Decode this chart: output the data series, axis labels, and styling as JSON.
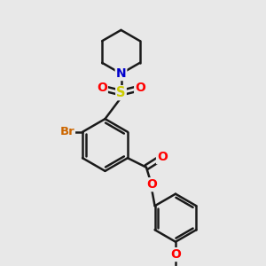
{
  "background_color": "#e8e8e8",
  "atom_colors": {
    "C": "#000000",
    "N": "#0000cd",
    "O": "#ff0000",
    "S": "#cccc00",
    "Br": "#cc6600"
  },
  "bond_color": "#1a1a1a",
  "bond_width": 1.8,
  "figsize": [
    3.0,
    3.0
  ],
  "dpi": 100
}
